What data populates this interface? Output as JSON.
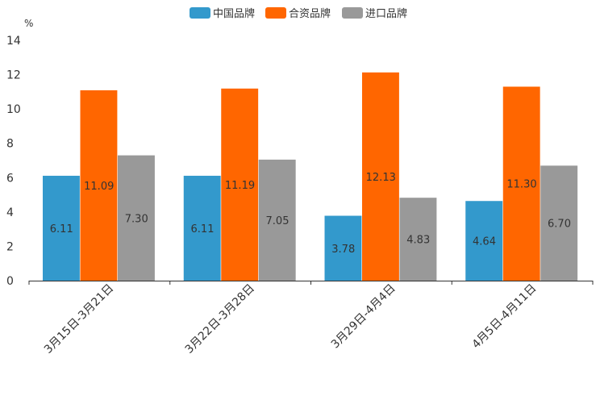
{
  "chart_data": {
    "type": "bar",
    "title": "",
    "xlabel": "",
    "ylabel": "%",
    "ylim": [
      0,
      14
    ],
    "yticks": [
      "0",
      "2",
      "4",
      "6",
      "8",
      "10",
      "12",
      "14"
    ],
    "grid": false,
    "legend_position": "top-center",
    "categories": [
      "3月15日-3月21日",
      "3月22日-3月28日",
      "3月29日-4月4日",
      "4月5日-4月11日"
    ],
    "series": [
      {
        "name": "中国品牌",
        "color": "#3399cc",
        "values": [
          6.11,
          6.11,
          3.78,
          4.64
        ],
        "labels": [
          "6.11",
          "6.11",
          "3.78",
          "4.64"
        ]
      },
      {
        "name": "合资品牌",
        "color": "#ff6600",
        "values": [
          11.09,
          11.19,
          12.13,
          11.3
        ],
        "labels": [
          "11.09",
          "11.19",
          "12.13",
          "11.30"
        ]
      },
      {
        "name": "进口品牌",
        "color": "#999999",
        "values": [
          7.3,
          7.05,
          4.83,
          6.7
        ],
        "labels": [
          "7.30",
          "7.05",
          "4.83",
          "6.70"
        ]
      }
    ]
  }
}
